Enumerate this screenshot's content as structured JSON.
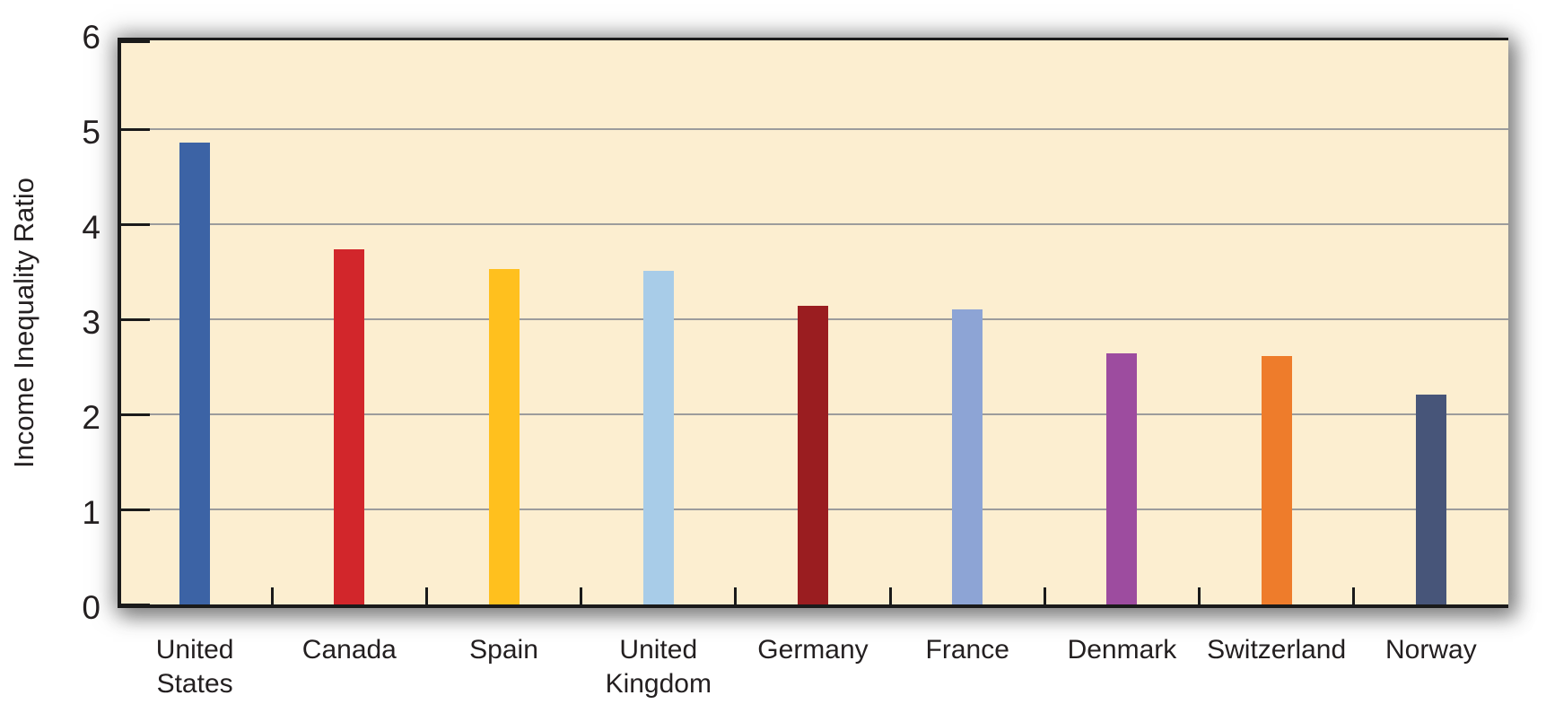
{
  "chart_data": {
    "type": "bar",
    "title": "",
    "ylabel": "Income Inequality Ratio",
    "xlabel": "",
    "ylim": [
      0,
      6
    ],
    "yticks": [
      0,
      1,
      2,
      3,
      4,
      5,
      6
    ],
    "grid": "horizontal",
    "legend": "none",
    "categories": [
      "United States",
      "Canada",
      "Spain",
      "United Kingdom",
      "Germany",
      "France",
      "Denmark",
      "Switzerland",
      "Norway"
    ],
    "values": [
      4.86,
      3.74,
      3.53,
      3.51,
      3.14,
      3.1,
      2.64,
      2.61,
      2.21
    ],
    "bar_colors": [
      "#3C63A5",
      "#D2262B",
      "#FFC01E",
      "#A8CCE8",
      "#9A1D20",
      "#8DA4D5",
      "#9D4C9F",
      "#EE7C2B",
      "#475579"
    ],
    "colors": {
      "plot_background": "#FCEED0",
      "gridline": "#9C9C9C",
      "axis": "#1A1A1A",
      "text": "#231F20",
      "shadow": "#555555",
      "page_background": "#FFFFFF"
    }
  }
}
